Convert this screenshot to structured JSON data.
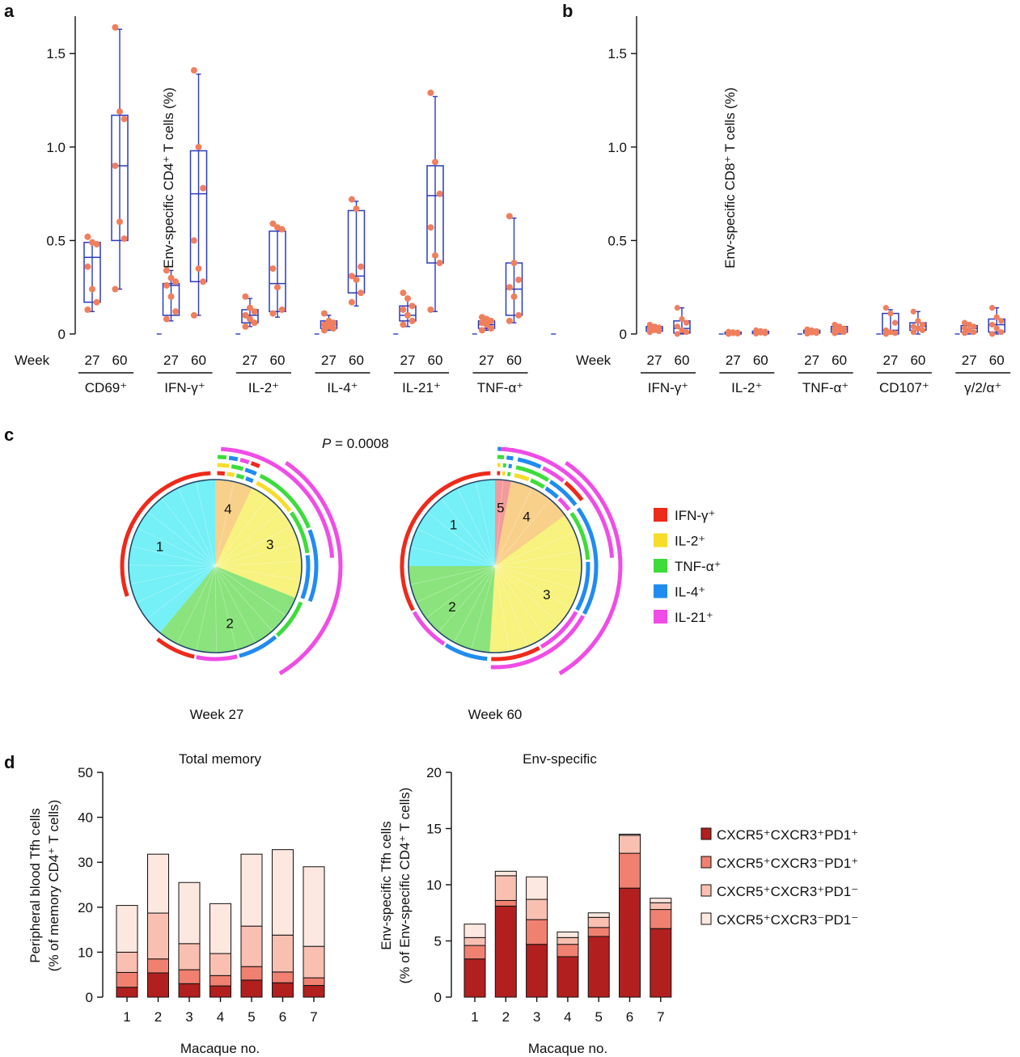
{
  "panel_letters": [
    "a",
    "b",
    "c",
    "d"
  ],
  "colors": {
    "axis": "#111111",
    "box": "#2b3bbf",
    "point": "#f07f5e",
    "IFN": "#ee2a1b",
    "IL2": "#f7dd2a",
    "TNF": "#3ddc3a",
    "IL4": "#1f8cf0",
    "IL21": "#f04ce6",
    "seg1": "#74f0f6",
    "seg2": "#8ae37c",
    "seg3": "#f8f27e",
    "seg4": "#f8d08a",
    "seg5": "#f49a9a",
    "bar_dark": "#b11f1f",
    "bar_mid": "#f08070",
    "bar_light": "#f9c0b2",
    "bar_pale": "#fde8e0"
  },
  "chart_data": [
    {
      "id": "a",
      "type": "box",
      "ylabel": "Env-specific CD4⁺ T cells (%)",
      "ylim": [
        0,
        1.7
      ],
      "yticks": [
        0,
        0.5,
        1.0,
        1.5
      ],
      "ytick_labels": [
        "0",
        "0.5",
        "1.0",
        "1.5"
      ],
      "week_label": "Week",
      "week_ticks": [
        "27",
        "60"
      ],
      "groups": [
        {
          "label": "CD69⁺",
          "w27": {
            "min": 0.12,
            "q1": 0.17,
            "median": 0.41,
            "q3": 0.49,
            "max": 0.5,
            "points": [
              0.52,
              0.49,
              0.48,
              0.36,
              0.24,
              0.17,
              0.13
            ]
          },
          "w60": {
            "min": 0.24,
            "q1": 0.5,
            "median": 0.9,
            "q3": 1.17,
            "max": 1.63,
            "points": [
              1.64,
              1.19,
              1.15,
              0.9,
              0.6,
              0.51,
              0.24
            ]
          }
        },
        {
          "label": "IFN-γ⁺",
          "w27": {
            "min": 0.07,
            "q1": 0.1,
            "median": 0.26,
            "q3": 0.27,
            "max": 0.34,
            "points": [
              0.34,
              0.3,
              0.28,
              0.26,
              0.2,
              0.12,
              0.08
            ]
          },
          "w60": {
            "min": 0.1,
            "q1": 0.28,
            "median": 0.75,
            "q3": 0.98,
            "max": 1.39,
            "points": [
              1.41,
              1.0,
              0.78,
              0.5,
              0.35,
              0.28,
              0.1
            ]
          }
        },
        {
          "label": "IL-2⁺",
          "w27": {
            "min": 0.04,
            "q1": 0.06,
            "median": 0.1,
            "q3": 0.13,
            "max": 0.19,
            "points": [
              0.2,
              0.14,
              0.12,
              0.1,
              0.08,
              0.06,
              0.04
            ]
          },
          "w60": {
            "min": 0.09,
            "q1": 0.12,
            "median": 0.27,
            "q3": 0.55,
            "max": 0.57,
            "points": [
              0.59,
              0.57,
              0.56,
              0.35,
              0.25,
              0.13,
              0.11
            ]
          }
        },
        {
          "label": "IL-4⁺",
          "w27": {
            "min": 0.02,
            "q1": 0.03,
            "median": 0.05,
            "q3": 0.07,
            "max": 0.1,
            "points": [
              0.11,
              0.07,
              0.06,
              0.05,
              0.04,
              0.03,
              0.02
            ]
          },
          "w60": {
            "min": 0.15,
            "q1": 0.22,
            "median": 0.31,
            "q3": 0.66,
            "max": 0.71,
            "points": [
              0.72,
              0.67,
              0.36,
              0.31,
              0.29,
              0.22,
              0.17
            ]
          }
        },
        {
          "label": "IL-21⁺",
          "w27": {
            "min": 0.04,
            "q1": 0.07,
            "median": 0.1,
            "q3": 0.15,
            "max": 0.2,
            "points": [
              0.22,
              0.19,
              0.15,
              0.13,
              0.1,
              0.07,
              0.05
            ]
          },
          "w60": {
            "min": 0.12,
            "q1": 0.38,
            "median": 0.74,
            "q3": 0.9,
            "max": 1.27,
            "points": [
              1.29,
              0.92,
              0.75,
              0.57,
              0.42,
              0.38,
              0.13
            ]
          }
        },
        {
          "label": "TNF-α⁺",
          "w27": {
            "min": 0.02,
            "q1": 0.03,
            "median": 0.05,
            "q3": 0.07,
            "max": 0.09,
            "points": [
              0.09,
              0.08,
              0.07,
              0.06,
              0.05,
              0.03,
              0.02
            ]
          },
          "w60": {
            "min": 0.06,
            "q1": 0.1,
            "median": 0.24,
            "q3": 0.38,
            "max": 0.62,
            "points": [
              0.63,
              0.38,
              0.29,
              0.25,
              0.2,
              0.1,
              0.07
            ]
          }
        }
      ]
    },
    {
      "id": "b",
      "type": "box",
      "ylabel": "Env-specific CD8⁺ T cells (%)",
      "ylim": [
        0,
        1.7
      ],
      "yticks": [
        0,
        0.5,
        1.0,
        1.5
      ],
      "ytick_labels": [
        "0",
        "0.5",
        "1.0",
        "1.5"
      ],
      "week_label": "Week",
      "week_ticks": [
        "27",
        "60"
      ],
      "groups": [
        {
          "label": "IFN-γ⁺",
          "w27": {
            "min": 0.01,
            "q1": 0.015,
            "median": 0.03,
            "q3": 0.04,
            "max": 0.05,
            "points": [
              0.05,
              0.04,
              0.035,
              0.03,
              0.02,
              0.015,
              0.01
            ]
          },
          "w60": {
            "min": 0.0,
            "q1": 0.005,
            "median": 0.03,
            "q3": 0.07,
            "max": 0.14,
            "points": [
              0.14,
              0.08,
              0.06,
              0.04,
              0.02,
              0.01,
              0.0
            ]
          }
        },
        {
          "label": "IL-2⁺",
          "w27": {
            "min": 0.0,
            "q1": 0.0,
            "median": 0.005,
            "q3": 0.01,
            "max": 0.01,
            "points": [
              0.012,
              0.01,
              0.008,
              0.005,
              0.004,
              0.002,
              0.0
            ]
          },
          "w60": {
            "min": 0.0,
            "q1": 0.002,
            "median": 0.008,
            "q3": 0.015,
            "max": 0.02,
            "points": [
              0.02,
              0.016,
              0.013,
              0.01,
              0.007,
              0.004,
              0.002
            ]
          }
        },
        {
          "label": "TNF-α⁺",
          "w27": {
            "min": 0.0,
            "q1": 0.005,
            "median": 0.012,
            "q3": 0.02,
            "max": 0.025,
            "points": [
              0.025,
              0.02,
              0.016,
              0.012,
              0.008,
              0.005,
              0.002
            ]
          },
          "w60": {
            "min": 0.0,
            "q1": 0.01,
            "median": 0.025,
            "q3": 0.04,
            "max": 0.05,
            "points": [
              0.05,
              0.04,
              0.03,
              0.025,
              0.018,
              0.01,
              0.004
            ]
          }
        },
        {
          "label": "CD107⁺",
          "w27": {
            "min": 0.0,
            "q1": 0.0,
            "median": 0.02,
            "q3": 0.11,
            "max": 0.13,
            "points": [
              0.14,
              0.11,
              0.06,
              0.02,
              0.01,
              0.005,
              0.0
            ]
          },
          "w60": {
            "min": 0.0,
            "q1": 0.02,
            "median": 0.04,
            "q3": 0.06,
            "max": 0.12,
            "points": [
              0.12,
              0.07,
              0.05,
              0.04,
              0.03,
              0.02,
              0.01
            ]
          }
        },
        {
          "label": "γ/2/α⁺",
          "w27": {
            "min": 0.0,
            "q1": 0.01,
            "median": 0.03,
            "q3": 0.045,
            "max": 0.06,
            "points": [
              0.06,
              0.05,
              0.04,
              0.03,
              0.02,
              0.01,
              0.005
            ]
          },
          "w60": {
            "min": 0.0,
            "q1": 0.01,
            "median": 0.05,
            "q3": 0.08,
            "max": 0.14,
            "points": [
              0.14,
              0.09,
              0.07,
              0.05,
              0.03,
              0.01,
              0.0
            ]
          }
        }
      ]
    },
    {
      "id": "c",
      "type": "pie",
      "pvalue_label": "P",
      "pvalue_text": " = 0.0008",
      "legend": [
        "IFN-γ⁺",
        "IL-2⁺",
        "TNF-α⁺",
        "IL-4⁺",
        "IL-21⁺"
      ],
      "pies": [
        {
          "label": "Week 27",
          "slices": [
            {
              "n": "4",
              "value": 0.07
            },
            {
              "n": "3",
              "value": 0.24
            },
            {
              "n": "2",
              "value": 0.3
            },
            {
              "n": "1",
              "value": 0.39
            }
          ]
        },
        {
          "label": "Week 60",
          "slices": [
            {
              "n": "5",
              "value": 0.03
            },
            {
              "n": "4",
              "value": 0.12
            },
            {
              "n": "3",
              "value": 0.36
            },
            {
              "n": "2",
              "value": 0.24
            },
            {
              "n": "1",
              "value": 0.25
            }
          ]
        }
      ]
    },
    {
      "id": "d1",
      "type": "bar",
      "stacked": true,
      "title": "Total memory",
      "xlabel": "Macaque no.",
      "ylabel": "Peripheral blood Tfh cells",
      "ylabel2": "(% of memory CD4⁺ T cells)",
      "ylim": [
        0,
        50
      ],
      "yticks": [
        0,
        10,
        20,
        30,
        40,
        50
      ],
      "categories": [
        "1",
        "2",
        "3",
        "4",
        "5",
        "6",
        "7"
      ],
      "series": [
        {
          "name": "CXCR5⁺CXCR3⁺PD1⁺",
          "values": [
            2.2,
            5.4,
            3.0,
            2.5,
            3.8,
            3.2,
            2.6
          ]
        },
        {
          "name": "CXCR5⁺CXCR3⁻PD1⁺",
          "values": [
            3.3,
            3.1,
            3.1,
            2.3,
            3.0,
            2.4,
            1.7
          ]
        },
        {
          "name": "CXCR5⁺CXCR3⁺PD1⁻",
          "values": [
            4.5,
            10.2,
            5.8,
            4.9,
            9.0,
            8.2,
            7.0
          ]
        },
        {
          "name": "CXCR5⁺CXCR3⁻PD1⁻",
          "values": [
            10.4,
            13.1,
            13.6,
            11.1,
            16.0,
            19.0,
            17.7
          ]
        }
      ]
    },
    {
      "id": "d2",
      "type": "bar",
      "stacked": true,
      "title": "Env-specific",
      "xlabel": "Macaque no.",
      "ylabel": "Env-specific Tfh cells",
      "ylabel2": "(% of Env-specific CD4⁺ T cells)",
      "ylim": [
        0,
        20
      ],
      "yticks": [
        0,
        5,
        10,
        15,
        20
      ],
      "categories": [
        "1",
        "2",
        "3",
        "4",
        "5",
        "6",
        "7"
      ],
      "series": [
        {
          "name": "CXCR5⁺CXCR3⁺PD1⁺",
          "values": [
            3.4,
            8.1,
            4.7,
            3.6,
            5.4,
            9.7,
            6.1
          ]
        },
        {
          "name": "CXCR5⁺CXCR3⁻PD1⁺",
          "values": [
            1.2,
            0.5,
            2.2,
            1.1,
            0.8,
            3.1,
            1.7
          ]
        },
        {
          "name": "CXCR5⁺CXCR3⁺PD1⁻",
          "values": [
            0.7,
            2.2,
            1.8,
            0.6,
            0.9,
            1.6,
            0.6
          ]
        },
        {
          "name": "CXCR5⁺CXCR3⁻PD1⁻",
          "values": [
            1.2,
            0.4,
            2.0,
            0.5,
            0.4,
            0.1,
            0.4
          ]
        }
      ]
    }
  ]
}
